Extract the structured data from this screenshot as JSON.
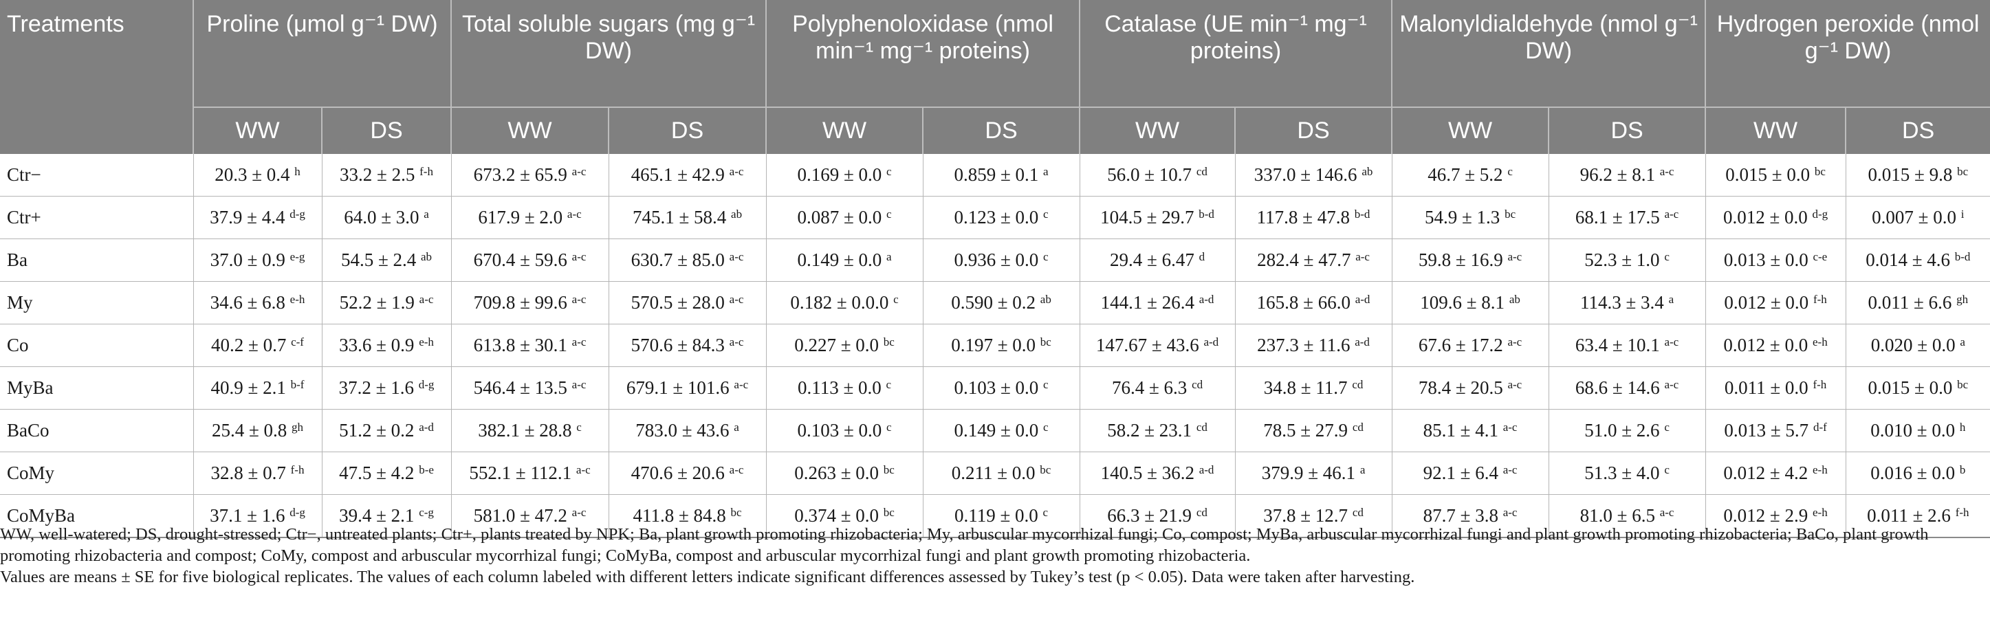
{
  "table": {
    "headers": [
      {
        "key": "treatments",
        "label": "Treatments"
      },
      {
        "key": "proline",
        "label": "Proline (μmol g⁻¹ DW)"
      },
      {
        "key": "sugars",
        "label": "Total soluble sugars (mg g⁻¹ DW)"
      },
      {
        "key": "ppo",
        "label": "Polyphenoloxidase (nmol min⁻¹ mg⁻¹ proteins)"
      },
      {
        "key": "catalase",
        "label": "Catalase (UE min⁻¹ mg⁻¹ proteins)"
      },
      {
        "key": "mda",
        "label": "Malonyldialdehyde (nmol g⁻¹ DW)"
      },
      {
        "key": "h2o2",
        "label": "Hydrogen peroxide (nmol g⁻¹ DW)"
      }
    ],
    "subheaders": [
      "WW",
      "DS",
      "WW",
      "DS",
      "WW",
      "DS",
      "WW",
      "DS",
      "WW",
      "DS",
      "WW",
      "DS"
    ],
    "rows": [
      {
        "treatment": "Ctr−",
        "cells": [
          {
            "v": "20.3 ± 0.4",
            "s": "h"
          },
          {
            "v": "33.2 ± 2.5",
            "s": "f-h"
          },
          {
            "v": "673.2 ± 65.9",
            "s": "a-c"
          },
          {
            "v": "465.1 ± 42.9",
            "s": "a-c"
          },
          {
            "v": "0.169 ± 0.0",
            "s": "c"
          },
          {
            "v": "0.859 ± 0.1",
            "s": "a"
          },
          {
            "v": "56.0 ± 10.7",
            "s": "cd"
          },
          {
            "v": "337.0 ± 146.6",
            "s": "ab"
          },
          {
            "v": "46.7 ± 5.2",
            "s": "c"
          },
          {
            "v": "96.2 ± 8.1",
            "s": "a-c"
          },
          {
            "v": "0.015 ± 0.0",
            "s": "bc"
          },
          {
            "v": "0.015 ± 9.8",
            "s": "bc"
          }
        ]
      },
      {
        "treatment": "Ctr+",
        "cells": [
          {
            "v": "37.9 ± 4.4",
            "s": "d-g"
          },
          {
            "v": "64.0 ± 3.0",
            "s": "a"
          },
          {
            "v": "617.9 ± 2.0",
            "s": "a-c"
          },
          {
            "v": "745.1 ± 58.4",
            "s": "ab"
          },
          {
            "v": "0.087 ± 0.0",
            "s": "c"
          },
          {
            "v": "0.123 ± 0.0",
            "s": "c"
          },
          {
            "v": "104.5 ± 29.7",
            "s": "b-d"
          },
          {
            "v": "117.8 ± 47.8",
            "s": "b-d"
          },
          {
            "v": "54.9 ± 1.3",
            "s": "bc"
          },
          {
            "v": "68.1 ± 17.5",
            "s": "a-c"
          },
          {
            "v": "0.012 ± 0.0",
            "s": "d-g"
          },
          {
            "v": "0.007 ± 0.0",
            "s": "i"
          }
        ]
      },
      {
        "treatment": "Ba",
        "cells": [
          {
            "v": "37.0 ± 0.9",
            "s": "e-g"
          },
          {
            "v": "54.5 ± 2.4",
            "s": "ab"
          },
          {
            "v": "670.4 ± 59.6",
            "s": "a-c"
          },
          {
            "v": "630.7 ± 85.0",
            "s": "a-c"
          },
          {
            "v": "0.149 ± 0.0",
            "s": "a"
          },
          {
            "v": "0.936 ± 0.0",
            "s": "c"
          },
          {
            "v": "29.4 ± 6.47",
            "s": "d"
          },
          {
            "v": "282.4 ± 47.7",
            "s": "a-c"
          },
          {
            "v": "59.8 ± 16.9",
            "s": "a-c"
          },
          {
            "v": "52.3 ± 1.0",
            "s": "c"
          },
          {
            "v": "0.013 ± 0.0",
            "s": "c-e"
          },
          {
            "v": "0.014 ± 4.6",
            "s": "b-d"
          }
        ]
      },
      {
        "treatment": "My",
        "cells": [
          {
            "v": "34.6 ± 6.8",
            "s": "e-h"
          },
          {
            "v": "52.2 ± 1.9",
            "s": "a-c"
          },
          {
            "v": "709.8 ± 99.6",
            "s": "a-c"
          },
          {
            "v": "570.5 ± 28.0",
            "s": "a-c"
          },
          {
            "v": "0.182 ± 0.0.0",
            "s": "c"
          },
          {
            "v": "0.590 ± 0.2",
            "s": "ab"
          },
          {
            "v": "144.1 ± 26.4",
            "s": "a-d"
          },
          {
            "v": "165.8 ± 66.0",
            "s": "a-d"
          },
          {
            "v": "109.6 ± 8.1",
            "s": "ab"
          },
          {
            "v": "114.3 ± 3.4",
            "s": "a"
          },
          {
            "v": "0.012 ± 0.0",
            "s": "f-h"
          },
          {
            "v": "0.011 ± 6.6",
            "s": "gh"
          }
        ]
      },
      {
        "treatment": "Co",
        "cells": [
          {
            "v": "40.2 ± 0.7",
            "s": "c-f"
          },
          {
            "v": "33.6 ± 0.9",
            "s": "e-h"
          },
          {
            "v": "613.8 ± 30.1",
            "s": "a-c"
          },
          {
            "v": "570.6 ± 84.3",
            "s": "a-c"
          },
          {
            "v": "0.227 ± 0.0",
            "s": "bc"
          },
          {
            "v": "0.197 ± 0.0",
            "s": "bc"
          },
          {
            "v": "147.67 ± 43.6",
            "s": "a-d"
          },
          {
            "v": "237.3 ± 11.6",
            "s": "a-d"
          },
          {
            "v": "67.6 ± 17.2",
            "s": "a-c"
          },
          {
            "v": "63.4 ± 10.1",
            "s": "a-c"
          },
          {
            "v": "0.012 ± 0.0",
            "s": "e-h"
          },
          {
            "v": "0.020 ± 0.0",
            "s": "a"
          }
        ]
      },
      {
        "treatment": "MyBa",
        "cells": [
          {
            "v": "40.9 ± 2.1",
            "s": "b-f"
          },
          {
            "v": "37.2 ± 1.6",
            "s": "d-g"
          },
          {
            "v": "546.4 ± 13.5",
            "s": "a-c"
          },
          {
            "v": "679.1 ± 101.6",
            "s": "a-c"
          },
          {
            "v": "0.113 ± 0.0",
            "s": "c"
          },
          {
            "v": "0.103 ± 0.0",
            "s": "c"
          },
          {
            "v": "76.4 ± 6.3",
            "s": "cd"
          },
          {
            "v": "34.8 ± 11.7",
            "s": "cd"
          },
          {
            "v": "78.4 ± 20.5",
            "s": "a-c"
          },
          {
            "v": "68.6 ± 14.6",
            "s": "a-c"
          },
          {
            "v": "0.011 ± 0.0",
            "s": "f-h"
          },
          {
            "v": "0.015 ± 0.0",
            "s": "bc"
          }
        ]
      },
      {
        "treatment": "BaCo",
        "cells": [
          {
            "v": "25.4 ± 0.8",
            "s": "gh"
          },
          {
            "v": "51.2 ± 0.2",
            "s": "a-d"
          },
          {
            "v": "382.1 ± 28.8",
            "s": "c"
          },
          {
            "v": "783.0 ± 43.6",
            "s": "a"
          },
          {
            "v": "0.103 ± 0.0",
            "s": "c"
          },
          {
            "v": "0.149 ± 0.0",
            "s": "c"
          },
          {
            "v": "58.2 ± 23.1",
            "s": "cd"
          },
          {
            "v": "78.5 ± 27.9",
            "s": "cd"
          },
          {
            "v": "85.1 ± 4.1",
            "s": "a-c"
          },
          {
            "v": "51.0 ± 2.6",
            "s": "c"
          },
          {
            "v": "0.013 ± 5.7",
            "s": "d-f"
          },
          {
            "v": "0.010 ± 0.0",
            "s": "h"
          }
        ]
      },
      {
        "treatment": "CoMy",
        "cells": [
          {
            "v": "32.8 ± 0.7",
            "s": "f-h"
          },
          {
            "v": "47.5 ± 4.2",
            "s": "b-e"
          },
          {
            "v": "552.1 ± 112.1",
            "s": "a-c"
          },
          {
            "v": "470.6 ± 20.6",
            "s": "a-c"
          },
          {
            "v": "0.263 ± 0.0",
            "s": "bc"
          },
          {
            "v": "0.211 ± 0.0",
            "s": "bc"
          },
          {
            "v": "140.5 ± 36.2",
            "s": "a-d"
          },
          {
            "v": "379.9 ± 46.1",
            "s": "a"
          },
          {
            "v": "92.1 ± 6.4",
            "s": "a-c"
          },
          {
            "v": "51.3 ± 4.0",
            "s": "c"
          },
          {
            "v": "0.012 ± 4.2",
            "s": "e-h"
          },
          {
            "v": "0.016 ± 0.0",
            "s": "b"
          }
        ]
      },
      {
        "treatment": "CoMyBa",
        "cells": [
          {
            "v": "37.1 ± 1.6",
            "s": "d-g"
          },
          {
            "v": "39.4 ± 2.1",
            "s": "c-g"
          },
          {
            "v": "581.0 ± 47.2",
            "s": "a-c"
          },
          {
            "v": "411.8 ± 84.8",
            "s": "bc"
          },
          {
            "v": "0.374 ± 0.0",
            "s": "bc"
          },
          {
            "v": "0.119 ± 0.0",
            "s": "c"
          },
          {
            "v": "66.3 ± 21.9",
            "s": "cd"
          },
          {
            "v": "37.8 ± 12.7",
            "s": "cd"
          },
          {
            "v": "87.7 ± 3.8",
            "s": "a-c"
          },
          {
            "v": "81.0 ± 6.5",
            "s": "a-c"
          },
          {
            "v": "0.012 ± 2.9",
            "s": "e-h"
          },
          {
            "v": "0.011 ± 2.6",
            "s": "f-h"
          }
        ]
      }
    ]
  },
  "footnotes": [
    "WW, well-watered; DS, drought-stressed; Ctr−, untreated plants; Ctr+, plants treated by NPK; Ba, plant growth promoting rhizobacteria; My, arbuscular mycorrhizal fungi; Co, compost; MyBa, arbuscular mycorrhizal fungi and plant growth promoting rhizobacteria; BaCo, plant growth promoting rhizobacteria and compost; CoMy, compost and arbuscular mycorrhizal fungi; CoMyBa, compost and arbuscular mycorrhizal fungi and plant growth promoting rhizobacteria.",
    "Values are means ± SE for five biological replicates. The values of each column labeled with different letters indicate significant differences assessed by Tukey’s test (p < 0.05). Data were taken after harvesting."
  ]
}
